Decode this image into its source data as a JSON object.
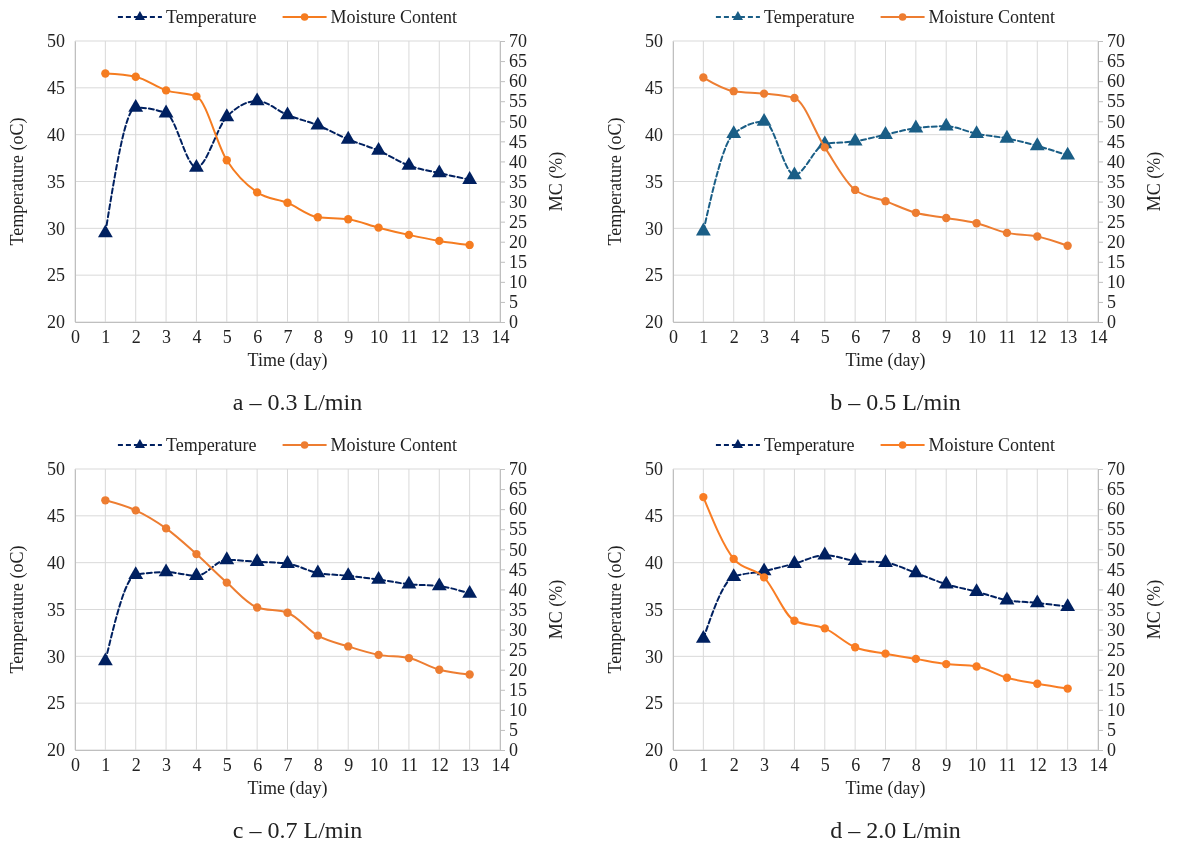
{
  "chart_data": [
    {
      "type": "line",
      "title": "a – 0.3 L/min",
      "xlabel": "Time (day)",
      "ylabel": "Temperature (oC)",
      "y2label": "MC (%)",
      "x": [
        1,
        2,
        3,
        4,
        5,
        6,
        7,
        8,
        9,
        10,
        11,
        12,
        13
      ],
      "xlim": [
        0,
        14
      ],
      "xticks": [
        0,
        1,
        2,
        3,
        4,
        5,
        6,
        7,
        8,
        9,
        10,
        11,
        12,
        13,
        14
      ],
      "ylim": [
        20,
        50
      ],
      "yticks": [
        20,
        25,
        30,
        35,
        40,
        45,
        50
      ],
      "y2lim": [
        0,
        70
      ],
      "y2ticks": [
        0,
        5,
        10,
        15,
        20,
        25,
        30,
        35,
        40,
        45,
        50,
        55,
        60,
        65,
        70
      ],
      "grid": true,
      "legend": "top",
      "series": [
        {
          "name": "Temperature",
          "color": "#002060",
          "marker": "triangle",
          "line_style": "dashed",
          "values": [
            29.5,
            42.9,
            42.3,
            36.5,
            41.9,
            43.6,
            42.1,
            41.0,
            39.5,
            38.3,
            36.7,
            35.9,
            35.2
          ]
        },
        {
          "name": "Moisture Content",
          "color": "#f57c20",
          "marker": "circle",
          "line_style": "solid",
          "axis": "y2",
          "values": [
            61.9,
            61.1,
            57.7,
            56.2,
            40.3,
            32.3,
            29.7,
            26.1,
            25.6,
            23.5,
            21.7,
            20.2,
            19.2
          ]
        }
      ]
    },
    {
      "type": "line",
      "title": "b – 0.5 L/min",
      "xlabel": "Time (day)",
      "ylabel": "Temperature (oC)",
      "y2label": "MC (%)",
      "x": [
        1,
        2,
        3,
        4,
        5,
        6,
        7,
        8,
        9,
        10,
        11,
        12,
        13
      ],
      "xlim": [
        0,
        14
      ],
      "xticks": [
        0,
        1,
        2,
        3,
        4,
        5,
        6,
        7,
        8,
        9,
        10,
        11,
        12,
        13,
        14
      ],
      "ylim": [
        20,
        50
      ],
      "yticks": [
        20,
        25,
        30,
        35,
        40,
        45,
        50
      ],
      "y2lim": [
        0,
        70
      ],
      "y2ticks": [
        0,
        5,
        10,
        15,
        20,
        25,
        30,
        35,
        40,
        45,
        50,
        55,
        60,
        65,
        70
      ],
      "grid": true,
      "legend": "top",
      "series": [
        {
          "name": "Temperature",
          "color": "#1a5e86",
          "marker": "triangle",
          "line_style": "dashed",
          "values": [
            29.7,
            40.1,
            41.4,
            35.7,
            39.0,
            39.3,
            40.0,
            40.7,
            40.9,
            40.1,
            39.6,
            38.8,
            37.8
          ]
        },
        {
          "name": "Moisture Content",
          "color": "#ed7d31",
          "marker": "circle",
          "line_style": "solid",
          "axis": "y2",
          "values": [
            60.9,
            57.5,
            56.9,
            55.8,
            43.5,
            32.9,
            30.1,
            27.2,
            25.9,
            24.6,
            22.2,
            21.3,
            19.0
          ]
        }
      ]
    },
    {
      "type": "line",
      "title": "c – 0.7 L/min",
      "xlabel": "Time (day)",
      "ylabel": "Temperature (oC)",
      "y2label": "MC (%)",
      "x": [
        1,
        2,
        3,
        4,
        5,
        6,
        7,
        8,
        9,
        10,
        11,
        12,
        13
      ],
      "xlim": [
        0,
        14
      ],
      "xticks": [
        0,
        1,
        2,
        3,
        4,
        5,
        6,
        7,
        8,
        9,
        10,
        11,
        12,
        13,
        14
      ],
      "ylim": [
        20,
        50
      ],
      "yticks": [
        20,
        25,
        30,
        35,
        40,
        45,
        50
      ],
      "y2lim": [
        0,
        70
      ],
      "y2ticks": [
        0,
        5,
        10,
        15,
        20,
        25,
        30,
        35,
        40,
        45,
        50,
        55,
        60,
        65,
        70
      ],
      "grid": true,
      "legend": "top",
      "series": [
        {
          "name": "Temperature",
          "color": "#002060",
          "marker": "triangle",
          "line_style": "dashed",
          "values": [
            29.5,
            38.7,
            39.0,
            38.6,
            40.3,
            40.1,
            39.9,
            38.9,
            38.6,
            38.2,
            37.7,
            37.5,
            36.7
          ]
        },
        {
          "name": "Moisture Content",
          "color": "#ed7d31",
          "marker": "circle",
          "line_style": "solid",
          "axis": "y2",
          "values": [
            62.2,
            59.7,
            55.2,
            48.8,
            41.7,
            35.5,
            34.2,
            28.5,
            25.8,
            23.7,
            22.9,
            20.0,
            18.8
          ]
        }
      ]
    },
    {
      "type": "line",
      "title": "d – 2.0 L/min",
      "xlabel": "Time (day)",
      "ylabel": "Temperature (oC)",
      "y2label": "MC (%)",
      "x": [
        1,
        2,
        3,
        4,
        5,
        6,
        7,
        8,
        9,
        10,
        11,
        12,
        13
      ],
      "xlim": [
        0,
        14
      ],
      "xticks": [
        0,
        1,
        2,
        3,
        4,
        5,
        6,
        7,
        8,
        9,
        10,
        11,
        12,
        13,
        14
      ],
      "ylim": [
        20,
        50
      ],
      "yticks": [
        20,
        25,
        30,
        35,
        40,
        45,
        50
      ],
      "y2lim": [
        0,
        70
      ],
      "y2ticks": [
        0,
        5,
        10,
        15,
        20,
        25,
        30,
        35,
        40,
        45,
        50,
        55,
        60,
        65,
        70
      ],
      "grid": true,
      "legend": "top",
      "series": [
        {
          "name": "Temperature",
          "color": "#002060",
          "marker": "triangle",
          "line_style": "dashed",
          "values": [
            31.9,
            38.5,
            39.1,
            39.9,
            40.8,
            40.2,
            40.0,
            38.9,
            37.7,
            36.9,
            36.0,
            35.7,
            35.3
          ]
        },
        {
          "name": "Moisture Content",
          "color": "#f97d24",
          "marker": "circle",
          "line_style": "solid",
          "axis": "y2",
          "values": [
            63.0,
            47.6,
            43.0,
            32.2,
            30.3,
            25.6,
            24.0,
            22.7,
            21.4,
            20.8,
            18.0,
            16.5,
            15.3
          ]
        }
      ]
    }
  ]
}
